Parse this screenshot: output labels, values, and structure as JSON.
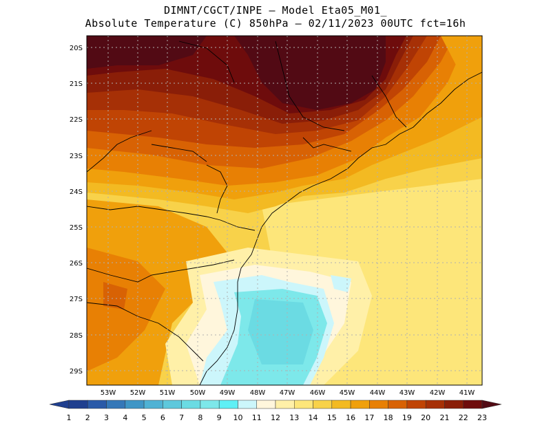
{
  "title_line1": "DIMNT/CGCT/INPE –  Model Eta05_M01_",
  "title_line2": "Absolute Temperature (C) 850hPa –  02/11/2023 00UTC fct=16h",
  "lat_labels": [
    "20S",
    "21S",
    "22S",
    "23S",
    "24S",
    "25S",
    "26S",
    "27S",
    "28S",
    "29S"
  ],
  "lon_labels": [
    "53W",
    "52W",
    "51W",
    "50W",
    "49W",
    "48W",
    "47W",
    "46W",
    "45W",
    "44W",
    "43W",
    "42W",
    "41W"
  ],
  "colorbar": {
    "values": [
      "1",
      "2",
      "3",
      "4",
      "5",
      "6",
      "7",
      "8",
      "9",
      "10",
      "11",
      "12",
      "13",
      "14",
      "15",
      "16",
      "17",
      "18",
      "19",
      "20",
      "21",
      "22",
      "23"
    ],
    "colors": [
      "#1f3f8f",
      "#2a5aa8",
      "#3578b8",
      "#3f96c6",
      "#4fb2d4",
      "#5ec8dc",
      "#6bdbe3",
      "#7de8ea",
      "#5ef0f5",
      "#ccf6fb",
      "#fff6dc",
      "#fff0a8",
      "#fde67a",
      "#f8d24a",
      "#f3ba22",
      "#f0a00c",
      "#e88004",
      "#d86204",
      "#c04404",
      "#a63006",
      "#8a1e08",
      "#6e0c0c",
      "#520a14"
    ]
  }
}
